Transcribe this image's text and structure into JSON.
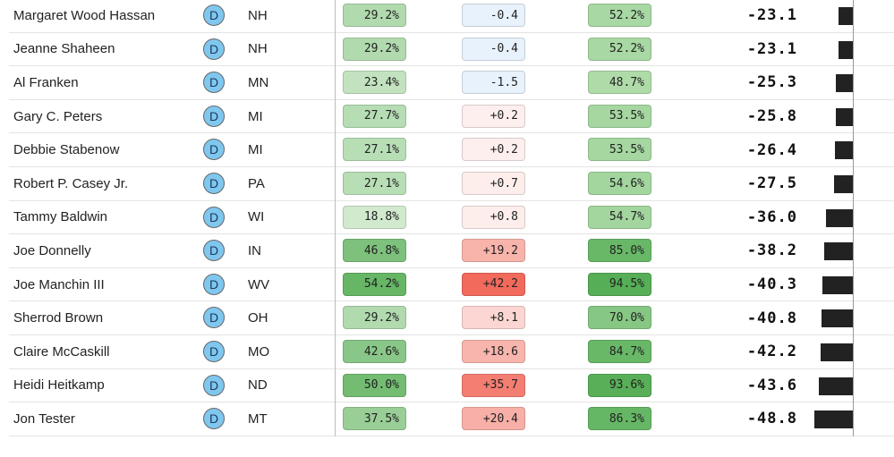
{
  "rows": [
    {
      "name": "Margaret Wood Hassan",
      "party": "D",
      "state": "NH",
      "c1": "29.2%",
      "c2": "-0.4",
      "c3": "52.2%",
      "score": "-23.1",
      "score_value": -23.1
    },
    {
      "name": "Jeanne Shaheen",
      "party": "D",
      "state": "NH",
      "c1": "29.2%",
      "c2": "-0.4",
      "c3": "52.2%",
      "score": "-23.1",
      "score_value": -23.1
    },
    {
      "name": "Al Franken",
      "party": "D",
      "state": "MN",
      "c1": "23.4%",
      "c2": "-1.5",
      "c3": "48.7%",
      "score": "-25.3",
      "score_value": -25.3
    },
    {
      "name": "Gary C. Peters",
      "party": "D",
      "state": "MI",
      "c1": "27.7%",
      "c2": "+0.2",
      "c3": "53.5%",
      "score": "-25.8",
      "score_value": -25.8
    },
    {
      "name": "Debbie Stabenow",
      "party": "D",
      "state": "MI",
      "c1": "27.1%",
      "c2": "+0.2",
      "c3": "53.5%",
      "score": "-26.4",
      "score_value": -26.4
    },
    {
      "name": "Robert P. Casey Jr.",
      "party": "D",
      "state": "PA",
      "c1": "27.1%",
      "c2": "+0.7",
      "c3": "54.6%",
      "score": "-27.5",
      "score_value": -27.5
    },
    {
      "name": "Tammy Baldwin",
      "party": "D",
      "state": "WI",
      "c1": "18.8%",
      "c2": "+0.8",
      "c3": "54.7%",
      "score": "-36.0",
      "score_value": -36.0
    },
    {
      "name": "Joe Donnelly",
      "party": "D",
      "state": "IN",
      "c1": "46.8%",
      "c2": "+19.2",
      "c3": "85.0%",
      "score": "-38.2",
      "score_value": -38.2
    },
    {
      "name": "Joe Manchin III",
      "party": "D",
      "state": "WV",
      "c1": "54.2%",
      "c2": "+42.2",
      "c3": "94.5%",
      "score": "-40.3",
      "score_value": -40.3
    },
    {
      "name": "Sherrod Brown",
      "party": "D",
      "state": "OH",
      "c1": "29.2%",
      "c2": "+8.1",
      "c3": "70.0%",
      "score": "-40.8",
      "score_value": -40.8
    },
    {
      "name": "Claire McCaskill",
      "party": "D",
      "state": "MO",
      "c1": "42.6%",
      "c2": "+18.6",
      "c3": "84.7%",
      "score": "-42.2",
      "score_value": -42.2
    },
    {
      "name": "Heidi Heitkamp",
      "party": "D",
      "state": "ND",
      "c1": "50.0%",
      "c2": "+35.7",
      "c3": "93.6%",
      "score": "-43.6",
      "score_value": -43.6
    },
    {
      "name": "Jon Tester",
      "party": "D",
      "state": "MT",
      "c1": "37.5%",
      "c2": "+20.4",
      "c3": "86.3%",
      "score": "-48.8",
      "score_value": -48.8
    }
  ],
  "colors": {
    "party_democrat": "#7fc7ef",
    "bar": "#222222",
    "green_light": "#dcefd9",
    "green_dark": "#55ae55",
    "red_light": "#fdf0ee",
    "red_dark": "#f26a5c",
    "blue_light": "#e8f2fc"
  }
}
